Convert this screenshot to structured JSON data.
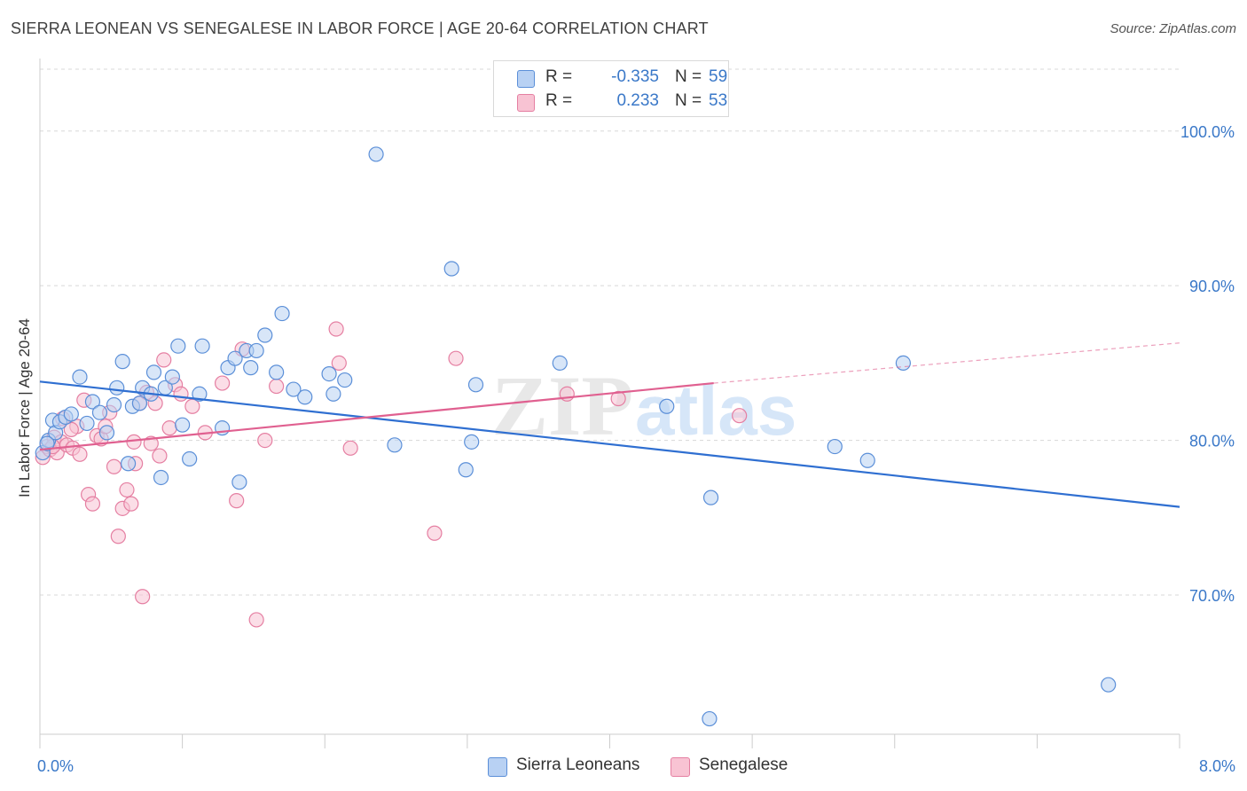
{
  "title": "SIERRA LEONEAN VS SENEGALESE IN LABOR FORCE | AGE 20-64 CORRELATION CHART",
  "source": "Source: ZipAtlas.com",
  "watermark": {
    "zip": "ZIP",
    "atlas": "atlas"
  },
  "legend": {
    "r_label": "R =",
    "n_label": "N =",
    "series": [
      {
        "r": "-0.335",
        "n": "59"
      },
      {
        "r": "0.233",
        "n": "53"
      }
    ]
  },
  "chart_data": {
    "type": "scatter",
    "title": "SIERRA LEONEAN VS SENEGALESE IN LABOR FORCE | AGE 20-64 CORRELATION CHART",
    "xlabel": "",
    "ylabel": "In Labor Force | Age 20-64",
    "xlim": [
      0.0,
      8.0
    ],
    "ylim": [
      61.0,
      104.0
    ],
    "x_tick_labels": [
      "0.0%",
      "8.0%"
    ],
    "y_ticks": [
      70,
      80,
      90,
      100
    ],
    "y_tick_labels": [
      "70.0%",
      "80.0%",
      "90.0%",
      "100.0%"
    ],
    "grid": true,
    "legend_position": "top-center",
    "colors": {
      "series1_fill": "#b8d1f3",
      "series1_stroke": "#5b8fd8",
      "series1_line": "#2f6fd1",
      "series2_fill": "#f8c3d3",
      "series2_stroke": "#e57fa2",
      "series2_line": "#e06090",
      "tick_label": "#3a78c8",
      "grid": "#d8d8d8",
      "axis": "#cccccc"
    },
    "series": [
      {
        "name": "Sierra Leoneans",
        "r": -0.335,
        "n": 59,
        "trend": {
          "x": [
            0.0,
            8.0
          ],
          "y": [
            83.8,
            75.7
          ]
        },
        "points": [
          [
            0.02,
            79.2
          ],
          [
            0.06,
            80.0
          ],
          [
            0.09,
            81.3
          ],
          [
            0.11,
            80.5
          ],
          [
            0.14,
            81.2
          ],
          [
            0.18,
            81.5
          ],
          [
            0.22,
            81.7
          ],
          [
            0.28,
            84.1
          ],
          [
            0.33,
            81.1
          ],
          [
            0.37,
            82.5
          ],
          [
            0.42,
            81.8
          ],
          [
            0.47,
            80.5
          ],
          [
            0.52,
            82.3
          ],
          [
            0.54,
            83.4
          ],
          [
            0.58,
            85.1
          ],
          [
            0.62,
            78.5
          ],
          [
            0.65,
            82.2
          ],
          [
            0.7,
            82.4
          ],
          [
            0.72,
            83.4
          ],
          [
            0.78,
            83.0
          ],
          [
            0.8,
            84.4
          ],
          [
            0.85,
            77.6
          ],
          [
            0.88,
            83.4
          ],
          [
            0.93,
            84.1
          ],
          [
            0.97,
            86.1
          ],
          [
            1.0,
            81.0
          ],
          [
            1.05,
            78.8
          ],
          [
            1.12,
            83.0
          ],
          [
            1.14,
            86.1
          ],
          [
            1.28,
            80.8
          ],
          [
            1.32,
            84.7
          ],
          [
            1.37,
            85.3
          ],
          [
            1.4,
            77.3
          ],
          [
            1.45,
            85.8
          ],
          [
            1.48,
            84.7
          ],
          [
            1.52,
            85.8
          ],
          [
            1.58,
            86.8
          ],
          [
            1.66,
            84.4
          ],
          [
            1.7,
            88.2
          ],
          [
            1.78,
            83.3
          ],
          [
            1.86,
            82.8
          ],
          [
            2.03,
            84.3
          ],
          [
            2.06,
            83.0
          ],
          [
            2.14,
            83.9
          ],
          [
            2.36,
            98.5
          ],
          [
            2.49,
            79.7
          ],
          [
            2.89,
            91.1
          ],
          [
            2.99,
            78.1
          ],
          [
            3.03,
            79.9
          ],
          [
            3.06,
            83.6
          ],
          [
            3.65,
            85.0
          ],
          [
            4.4,
            82.2
          ],
          [
            4.7,
            62.0
          ],
          [
            4.71,
            76.3
          ],
          [
            5.58,
            79.6
          ],
          [
            5.81,
            78.7
          ],
          [
            6.06,
            85.0
          ],
          [
            7.5,
            64.2
          ],
          [
            0.05,
            79.8
          ]
        ]
      },
      {
        "name": "Senegalese",
        "r": 0.233,
        "n": 53,
        "trend": {
          "x": [
            0.0,
            4.73
          ],
          "y": [
            79.4,
            83.7
          ]
        },
        "trend_dashed": {
          "x": [
            4.73,
            8.0
          ],
          "y": [
            83.7,
            86.3
          ]
        },
        "points": [
          [
            0.02,
            78.9
          ],
          [
            0.05,
            79.6
          ],
          [
            0.07,
            79.4
          ],
          [
            0.1,
            80.2
          ],
          [
            0.12,
            79.2
          ],
          [
            0.15,
            79.9
          ],
          [
            0.19,
            79.7
          ],
          [
            0.23,
            79.5
          ],
          [
            0.26,
            80.9
          ],
          [
            0.28,
            79.1
          ],
          [
            0.31,
            82.6
          ],
          [
            0.34,
            76.5
          ],
          [
            0.37,
            75.9
          ],
          [
            0.4,
            80.3
          ],
          [
            0.43,
            80.1
          ],
          [
            0.46,
            80.9
          ],
          [
            0.49,
            81.8
          ],
          [
            0.52,
            78.3
          ],
          [
            0.55,
            73.8
          ],
          [
            0.58,
            75.6
          ],
          [
            0.61,
            76.8
          ],
          [
            0.64,
            75.9
          ],
          [
            0.67,
            78.5
          ],
          [
            0.7,
            82.4
          ],
          [
            0.72,
            69.9
          ],
          [
            0.75,
            83.1
          ],
          [
            0.78,
            79.8
          ],
          [
            0.81,
            82.4
          ],
          [
            0.84,
            79.0
          ],
          [
            0.87,
            85.2
          ],
          [
            0.91,
            80.8
          ],
          [
            0.95,
            83.6
          ],
          [
            0.99,
            83.0
          ],
          [
            1.07,
            82.2
          ],
          [
            1.16,
            80.5
          ],
          [
            1.28,
            83.7
          ],
          [
            1.38,
            76.1
          ],
          [
            1.42,
            85.9
          ],
          [
            1.52,
            68.4
          ],
          [
            1.58,
            80.0
          ],
          [
            1.66,
            83.5
          ],
          [
            2.08,
            87.2
          ],
          [
            2.1,
            85.0
          ],
          [
            2.18,
            79.5
          ],
          [
            2.77,
            74.0
          ],
          [
            2.92,
            85.3
          ],
          [
            3.7,
            83.0
          ],
          [
            4.06,
            82.7
          ],
          [
            4.91,
            81.6
          ],
          [
            0.16,
            81.4
          ],
          [
            0.22,
            80.7
          ],
          [
            0.09,
            79.6
          ],
          [
            0.66,
            79.9
          ]
        ]
      }
    ]
  },
  "bottom_legend": [
    "Sierra Leoneans",
    "Senegalese"
  ]
}
